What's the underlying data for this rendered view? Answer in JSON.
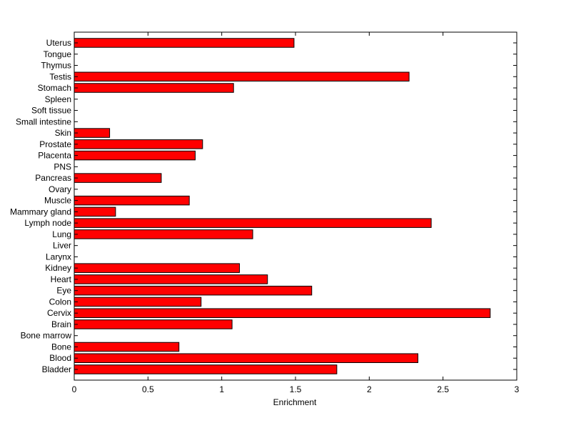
{
  "chart_data": {
    "type": "bar",
    "orientation": "horizontal",
    "title": "",
    "xlabel": "Enrichment",
    "ylabel": "",
    "xlim": [
      0,
      3
    ],
    "xticks": [
      0,
      0.5,
      1,
      1.5,
      2,
      2.5,
      3
    ],
    "xtick_labels": [
      "0",
      "0.5",
      "1",
      "1.5",
      "2",
      "2.5",
      "3"
    ],
    "grid": false,
    "categories": [
      "Bladder",
      "Blood",
      "Bone",
      "Bone marrow",
      "Brain",
      "Cervix",
      "Colon",
      "Eye",
      "Heart",
      "Kidney",
      "Larynx",
      "Liver",
      "Lung",
      "Lymph node",
      "Mammary gland",
      "Muscle",
      "Ovary",
      "Pancreas",
      "PNS",
      "Placenta",
      "Prostate",
      "Skin",
      "Small intestine",
      "Soft tissue",
      "Spleen",
      "Stomach",
      "Testis",
      "Thymus",
      "Tongue",
      "Uterus"
    ],
    "values": [
      1.78,
      2.33,
      0.71,
      0,
      1.07,
      2.82,
      0.86,
      1.61,
      1.31,
      1.12,
      0,
      0,
      1.21,
      2.42,
      0.28,
      0.78,
      0,
      0.59,
      0,
      0.82,
      0.87,
      0.24,
      0,
      0,
      0,
      1.08,
      2.27,
      0,
      0,
      1.49
    ],
    "bar_color": "#ff0000",
    "edge_color": "#000000"
  }
}
